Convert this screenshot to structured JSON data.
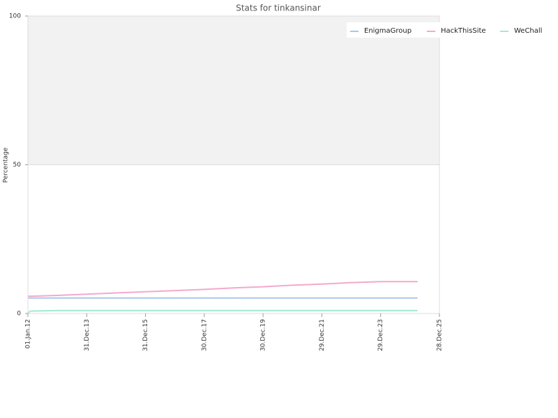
{
  "chart_data": {
    "type": "line",
    "title": "Stats for tinkansinar",
    "y_label": "Percentage",
    "x": [
      "2012-01-05",
      "2012-02-01",
      "2013-01-01",
      "2014-01-01",
      "2015-01-01",
      "2016-01-01",
      "2017-01-01",
      "2018-01-01",
      "2019-01-01",
      "2020-01-01",
      "2021-01-01",
      "2022-01-01",
      "2023-01-01",
      "2024-01-01",
      "2025-04-01"
    ],
    "series": [
      {
        "name": "EnigmaGroup",
        "color": "#a8c8ee",
        "values": [
          5.2,
          5.2,
          5.2,
          5.2,
          5.2,
          5.2,
          5.2,
          5.2,
          5.2,
          5.2,
          5.2,
          5.2,
          5.2,
          5.2,
          5.2
        ]
      },
      {
        "name": "HackThisSite",
        "color": "#f4a8cc",
        "values": [
          5.8,
          5.8,
          6.1,
          6.5,
          6.9,
          7.3,
          7.7,
          8.1,
          8.6,
          9.0,
          9.5,
          9.9,
          10.4,
          10.7,
          10.7
        ]
      },
      {
        "name": "WeChall",
        "color": "#9eecd0",
        "values": [
          0.2,
          0.8,
          1.0,
          1.0,
          1.0,
          1.0,
          1.0,
          1.0,
          1.0,
          1.0,
          1.0,
          1.0,
          1.0,
          1.0,
          1.0
        ]
      }
    ],
    "xlim": [
      "2012-01-01",
      "2025-12-28"
    ],
    "xticks": [
      {
        "value": "2012-01-01",
        "label": "01.Jan.12"
      },
      {
        "value": "2013-12-31",
        "label": "31.Dec.13"
      },
      {
        "value": "2015-12-31",
        "label": "31.Dec.15"
      },
      {
        "value": "2017-12-30",
        "label": "30.Dec.17"
      },
      {
        "value": "2019-12-30",
        "label": "30.Dec.19"
      },
      {
        "value": "2021-12-29",
        "label": "29.Dec.21"
      },
      {
        "value": "2023-12-29",
        "label": "29.Dec.23"
      },
      {
        "value": "2025-12-28",
        "label": "28.Dec.25"
      }
    ],
    "ylim": [
      0,
      100
    ],
    "yticks": [
      0,
      50,
      100
    ],
    "grid": true,
    "legend": "top-right"
  }
}
